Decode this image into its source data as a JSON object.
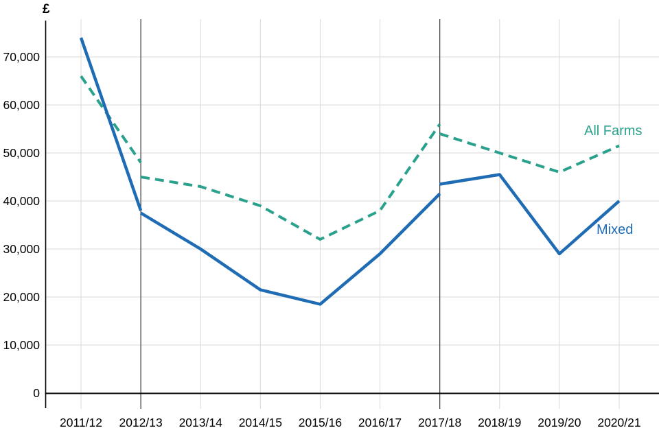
{
  "colors": {
    "all_farms": "#2aa18c",
    "mixed": "#1f6cb4",
    "grid": "#d9d9d9",
    "axis": "#000000",
    "break_line": "#3d3d3d",
    "text": "#000000",
    "background": "#ffffff"
  },
  "chart_data": {
    "type": "line",
    "title": "",
    "ylabel": "£",
    "xlabel": "",
    "grid": true,
    "ylim": [
      0,
      75000
    ],
    "ytick_interval": 10000,
    "yticks": [
      {
        "value": 0,
        "label": "0"
      },
      {
        "value": 10000,
        "label": "10,000"
      },
      {
        "value": 20000,
        "label": "20,000"
      },
      {
        "value": 30000,
        "label": "30,000"
      },
      {
        "value": 40000,
        "label": "40,000"
      },
      {
        "value": 50000,
        "label": "50,000"
      },
      {
        "value": 60000,
        "label": "60,000"
      },
      {
        "value": 70000,
        "label": "70,000"
      }
    ],
    "categories": [
      "2011/12",
      "2012/13",
      "2013/14",
      "2014/15",
      "2015/16",
      "2016/17",
      "2017/18",
      "2018/19",
      "2019/20",
      "2020/21"
    ],
    "series_break_categories": [
      "2012/13",
      "2017/18"
    ],
    "series_break_indices": [
      1,
      6
    ],
    "legend_position": "inline-right",
    "series": [
      {
        "name": "All Farms",
        "style": "dashed",
        "color_key": "all_farms",
        "segments": [
          {
            "start_index": 0,
            "values": [
              66000,
              48000
            ]
          },
          {
            "start_index": 1,
            "values": [
              45000,
              43000,
              39000,
              32000,
              38000,
              56000
            ]
          },
          {
            "start_index": 6,
            "values": [
              54000,
              50000,
              46000,
              51500
            ]
          }
        ]
      },
      {
        "name": "Mixed",
        "style": "solid",
        "color_key": "mixed",
        "segments": [
          {
            "start_index": 0,
            "values": [
              74000,
              38000
            ]
          },
          {
            "start_index": 1,
            "values": [
              37500,
              30000,
              21500,
              18500,
              29000,
              41500
            ]
          },
          {
            "start_index": 6,
            "values": [
              43500,
              45500,
              29000,
              40000
            ]
          }
        ]
      }
    ]
  }
}
